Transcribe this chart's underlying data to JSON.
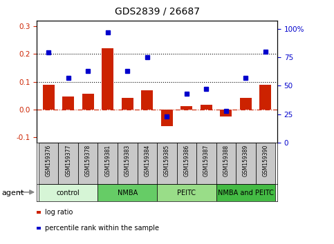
{
  "title": "GDS2839 / 26687",
  "samples": [
    "GSM159376",
    "GSM159377",
    "GSM159378",
    "GSM159381",
    "GSM159383",
    "GSM159384",
    "GSM159385",
    "GSM159386",
    "GSM159387",
    "GSM159388",
    "GSM159389",
    "GSM159390"
  ],
  "log_ratio": [
    0.09,
    0.047,
    0.057,
    0.22,
    0.043,
    0.07,
    -0.06,
    0.013,
    0.017,
    -0.025,
    0.042,
    0.09
  ],
  "percentile": [
    79,
    57,
    63,
    97,
    63,
    75,
    23,
    43,
    47,
    28,
    57,
    80
  ],
  "groups": [
    {
      "label": "control",
      "start": 0,
      "end": 3,
      "color": "#d6f5d6"
    },
    {
      "label": "NMBA",
      "start": 3,
      "end": 6,
      "color": "#66cc66"
    },
    {
      "label": "PEITC",
      "start": 6,
      "end": 9,
      "color": "#99dd88"
    },
    {
      "label": "NMBA and PEITC",
      "start": 9,
      "end": 12,
      "color": "#44bb44"
    }
  ],
  "bar_color": "#cc2200",
  "dot_color": "#0000cc",
  "ylim_left": [
    -0.12,
    0.32
  ],
  "ylim_right": [
    0,
    107
  ],
  "yticks_left": [
    -0.1,
    0.0,
    0.1,
    0.2,
    0.3
  ],
  "yticks_right": [
    0,
    25,
    50,
    75,
    100
  ],
  "yticklabels_right": [
    "0",
    "25",
    "50",
    "75",
    "100%"
  ],
  "hlines": [
    0.1,
    0.2
  ],
  "legend_items": [
    {
      "label": "log ratio",
      "color": "#cc2200"
    },
    {
      "label": "percentile rank within the sample",
      "color": "#0000cc"
    }
  ],
  "background_color": "#ffffff",
  "xlabel_group": "agent",
  "sample_box_color": "#c8c8c8"
}
